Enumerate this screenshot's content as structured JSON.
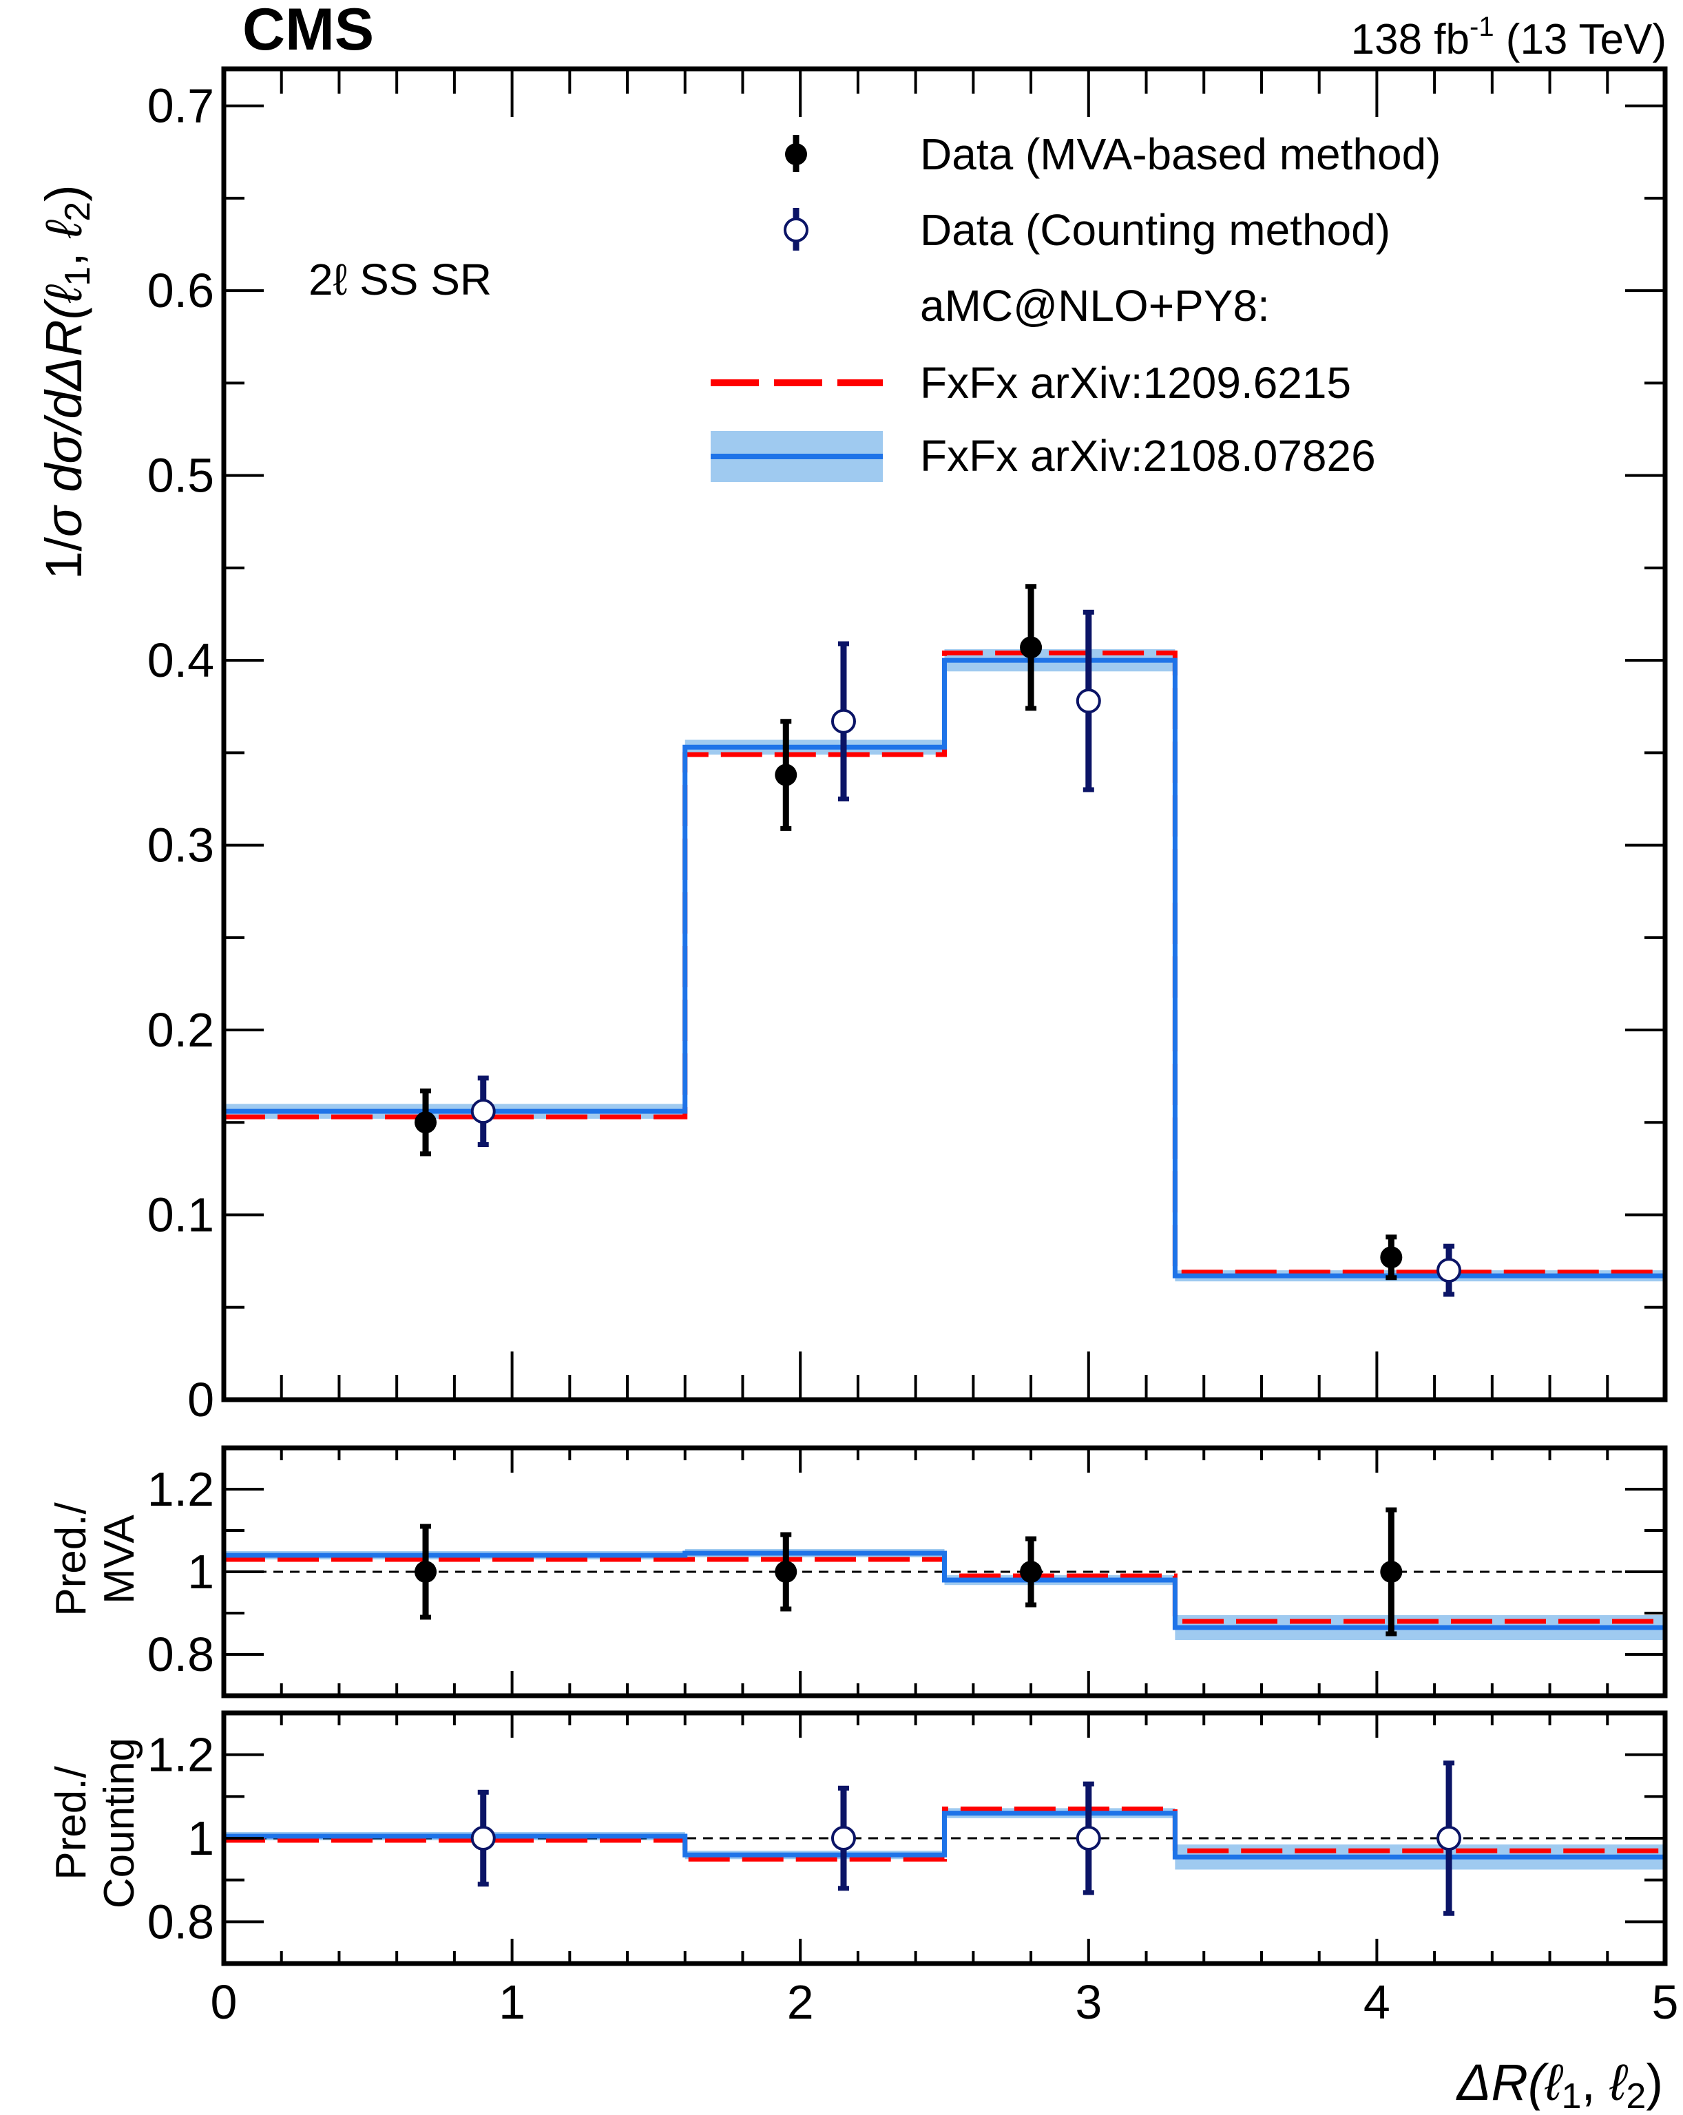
{
  "header": {
    "experiment": "CMS",
    "lumi_value": "138 fb",
    "lumi_exp": "-1",
    "energy": " (13 TeV)"
  },
  "region_label": "2ℓ SS SR",
  "legend": {
    "placement": "top-right",
    "entries": [
      {
        "key": "mva",
        "label": "Data (MVA-based method)"
      },
      {
        "key": "count",
        "label": "Data (Counting method)"
      },
      {
        "key": "gen",
        "label": "aMC@NLO+PY8:"
      },
      {
        "key": "fxfx1",
        "label": "FxFx arXiv:1209.6215"
      },
      {
        "key": "fxfx2",
        "label": "FxFx arXiv:2108.07826"
      }
    ]
  },
  "colors": {
    "mva": "#000000",
    "count": "#0b1466",
    "fxfx1": "#ff0000",
    "fxfx2": "#1e73e8",
    "band": "#9fcaf0"
  },
  "chart_data": [
    {
      "id": "main",
      "type": "line",
      "ylabel": "1/σ dσ/dΔR(ℓ₁, ℓ₂)",
      "xlim": [
        0,
        5
      ],
      "ylim": [
        0,
        0.72
      ],
      "yticks": [
        "0",
        "0.1",
        "0.2",
        "0.3",
        "0.4",
        "0.5",
        "0.6",
        "0.7"
      ],
      "bin_edges": [
        0,
        1.6,
        2.5,
        3.3,
        5
      ],
      "series": [
        {
          "name": "FxFx arXiv:1209.6215",
          "style": "dashed-step",
          "values": [
            0.153,
            0.349,
            0.404,
            0.069
          ]
        },
        {
          "name": "FxFx arXiv:2108.07826",
          "style": "step-band",
          "values": [
            0.156,
            0.353,
            0.4,
            0.067
          ],
          "band": [
            0.004,
            0.004,
            0.006,
            0.003
          ]
        },
        {
          "name": "Data (MVA-based method)",
          "style": "points-filled",
          "x": [
            0.7,
            1.95,
            2.8,
            4.05
          ],
          "y": [
            0.15,
            0.338,
            0.407,
            0.077
          ],
          "err": [
            0.017,
            0.029,
            0.033,
            0.011
          ]
        },
        {
          "name": "Data (Counting method)",
          "style": "points-open",
          "x": [
            0.9,
            2.15,
            3.0,
            4.25
          ],
          "y": [
            0.156,
            0.367,
            0.378,
            0.07
          ],
          "err": [
            0.018,
            0.042,
            0.048,
            0.013
          ]
        }
      ]
    },
    {
      "id": "ratio_mva",
      "type": "line",
      "ylabel": "Pred./\nMVA",
      "ylim": [
        0.7,
        1.3
      ],
      "yticks": [
        "0.8",
        "1",
        "1.2"
      ],
      "reference": 1,
      "bin_edges": [
        0,
        1.6,
        2.5,
        3.3,
        5
      ],
      "series": [
        {
          "name": "FxFx arXiv:1209.6215",
          "style": "dashed-step",
          "values": [
            1.03,
            1.03,
            0.99,
            0.88
          ]
        },
        {
          "name": "FxFx arXiv:2108.07826",
          "style": "step-band",
          "values": [
            1.04,
            1.045,
            0.98,
            0.865
          ],
          "band": [
            0.01,
            0.01,
            0.012,
            0.03
          ]
        },
        {
          "name": "Data (MVA-based method)",
          "style": "points-filled",
          "x": [
            0.7,
            1.95,
            2.8,
            4.05
          ],
          "y": [
            1,
            1,
            1,
            1
          ],
          "err": [
            0.11,
            0.09,
            0.08,
            0.15
          ]
        }
      ]
    },
    {
      "id": "ratio_counting",
      "type": "line",
      "ylabel": "Pred./\nCounting",
      "ylim": [
        0.7,
        1.3
      ],
      "yticks": [
        "0.8",
        "1",
        "1.2"
      ],
      "reference": 1,
      "xlabel": "ΔR(ℓ₁, ℓ₂)",
      "xlim": [
        0,
        5
      ],
      "xticks": [
        "0",
        "1",
        "2",
        "3",
        "4",
        "5"
      ],
      "bin_edges": [
        0,
        1.6,
        2.5,
        3.3,
        5
      ],
      "series": [
        {
          "name": "FxFx arXiv:1209.6215",
          "style": "dashed-step",
          "values": [
            0.995,
            0.95,
            1.07,
            0.97
          ]
        },
        {
          "name": "FxFx arXiv:2108.07826",
          "style": "step-band",
          "values": [
            1.005,
            0.96,
            1.06,
            0.955
          ],
          "band": [
            0.01,
            0.01,
            0.012,
            0.03
          ]
        },
        {
          "name": "Data (Counting method)",
          "style": "points-open",
          "x": [
            0.9,
            2.15,
            3.0,
            4.25
          ],
          "y": [
            1,
            1,
            1,
            1
          ],
          "err": [
            0.11,
            0.12,
            0.13,
            0.18
          ]
        }
      ]
    }
  ]
}
